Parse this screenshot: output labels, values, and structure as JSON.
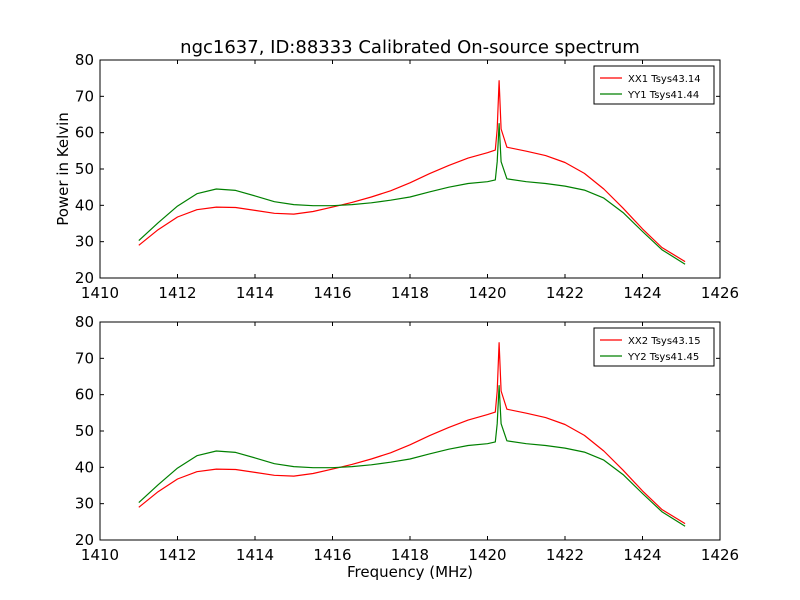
{
  "chart_data": [
    {
      "type": "line",
      "title": "ngc1637, ID:88333 Calibrated On-source spectrum",
      "xlabel": "",
      "ylabel": "Power in Kelvin",
      "xlim": [
        1410,
        1426
      ],
      "ylim": [
        20,
        80
      ],
      "xticks": [
        1410,
        1412,
        1414,
        1416,
        1418,
        1420,
        1422,
        1424,
        1426
      ],
      "yticks": [
        20,
        30,
        40,
        50,
        60,
        70,
        80
      ],
      "grid": false,
      "legend_position": "top-right",
      "series": [
        {
          "name": "XX1 Tsys43.14",
          "color": "#ff0000",
          "points": [
            [
              1411.0,
              29.0
            ],
            [
              1411.5,
              33.3
            ],
            [
              1412.0,
              36.8
            ],
            [
              1412.5,
              38.8
            ],
            [
              1413.0,
              39.5
            ],
            [
              1413.5,
              39.4
            ],
            [
              1414.0,
              38.6
            ],
            [
              1414.5,
              37.8
            ],
            [
              1415.0,
              37.6
            ],
            [
              1415.5,
              38.3
            ],
            [
              1416.0,
              39.5
            ],
            [
              1416.5,
              40.8
            ],
            [
              1417.0,
              42.3
            ],
            [
              1417.5,
              44.0
            ],
            [
              1418.0,
              46.2
            ],
            [
              1418.5,
              48.7
            ],
            [
              1419.0,
              51.0
            ],
            [
              1419.5,
              53.0
            ],
            [
              1420.0,
              54.5
            ],
            [
              1420.2,
              55.2
            ],
            [
              1420.25,
              61.0
            ],
            [
              1420.3,
              74.3
            ],
            [
              1420.35,
              61.0
            ],
            [
              1420.5,
              56.0
            ],
            [
              1421.0,
              54.9
            ],
            [
              1421.5,
              53.7
            ],
            [
              1422.0,
              51.8
            ],
            [
              1422.5,
              48.8
            ],
            [
              1423.0,
              44.5
            ],
            [
              1423.5,
              39.2
            ],
            [
              1424.0,
              33.5
            ],
            [
              1424.5,
              28.4
            ],
            [
              1425.1,
              24.5
            ]
          ]
        },
        {
          "name": "YY1 Tsys41.44",
          "color": "#008000",
          "points": [
            [
              1411.0,
              30.3
            ],
            [
              1411.5,
              35.2
            ],
            [
              1412.0,
              39.8
            ],
            [
              1412.5,
              43.2
            ],
            [
              1413.0,
              44.5
            ],
            [
              1413.5,
              44.1
            ],
            [
              1414.0,
              42.6
            ],
            [
              1414.5,
              41.0
            ],
            [
              1415.0,
              40.2
            ],
            [
              1415.5,
              39.9
            ],
            [
              1416.0,
              39.9
            ],
            [
              1416.5,
              40.2
            ],
            [
              1417.0,
              40.7
            ],
            [
              1417.5,
              41.4
            ],
            [
              1418.0,
              42.3
            ],
            [
              1418.5,
              43.7
            ],
            [
              1419.0,
              45.0
            ],
            [
              1419.5,
              46.0
            ],
            [
              1420.0,
              46.5
            ],
            [
              1420.2,
              47.0
            ],
            [
              1420.25,
              52.0
            ],
            [
              1420.3,
              62.5
            ],
            [
              1420.35,
              52.0
            ],
            [
              1420.5,
              47.3
            ],
            [
              1421.0,
              46.5
            ],
            [
              1421.5,
              46.0
            ],
            [
              1422.0,
              45.3
            ],
            [
              1422.5,
              44.2
            ],
            [
              1423.0,
              42.0
            ],
            [
              1423.5,
              38.0
            ],
            [
              1424.0,
              32.8
            ],
            [
              1424.5,
              27.8
            ],
            [
              1425.1,
              23.8
            ]
          ]
        }
      ]
    },
    {
      "type": "line",
      "title": "",
      "xlabel": "Frequency (MHz)",
      "ylabel": "",
      "xlim": [
        1410,
        1426
      ],
      "ylim": [
        20,
        80
      ],
      "xticks": [
        1410,
        1412,
        1414,
        1416,
        1418,
        1420,
        1422,
        1424,
        1426
      ],
      "yticks": [
        20,
        30,
        40,
        50,
        60,
        70,
        80
      ],
      "grid": false,
      "legend_position": "top-right",
      "series": [
        {
          "name": "XX2 Tsys43.15",
          "color": "#ff0000",
          "points": [
            [
              1411.0,
              29.0
            ],
            [
              1411.5,
              33.3
            ],
            [
              1412.0,
              36.8
            ],
            [
              1412.5,
              38.8
            ],
            [
              1413.0,
              39.5
            ],
            [
              1413.5,
              39.4
            ],
            [
              1414.0,
              38.6
            ],
            [
              1414.5,
              37.8
            ],
            [
              1415.0,
              37.6
            ],
            [
              1415.5,
              38.3
            ],
            [
              1416.0,
              39.5
            ],
            [
              1416.5,
              40.8
            ],
            [
              1417.0,
              42.3
            ],
            [
              1417.5,
              44.0
            ],
            [
              1418.0,
              46.2
            ],
            [
              1418.5,
              48.7
            ],
            [
              1419.0,
              51.0
            ],
            [
              1419.5,
              53.0
            ],
            [
              1420.0,
              54.5
            ],
            [
              1420.2,
              55.2
            ],
            [
              1420.25,
              61.0
            ],
            [
              1420.3,
              74.3
            ],
            [
              1420.35,
              61.0
            ],
            [
              1420.5,
              56.0
            ],
            [
              1421.0,
              54.9
            ],
            [
              1421.5,
              53.7
            ],
            [
              1422.0,
              51.8
            ],
            [
              1422.5,
              48.8
            ],
            [
              1423.0,
              44.5
            ],
            [
              1423.5,
              39.2
            ],
            [
              1424.0,
              33.5
            ],
            [
              1424.5,
              28.4
            ],
            [
              1425.1,
              24.5
            ]
          ]
        },
        {
          "name": "YY2 Tsys41.45",
          "color": "#008000",
          "points": [
            [
              1411.0,
              30.3
            ],
            [
              1411.5,
              35.2
            ],
            [
              1412.0,
              39.8
            ],
            [
              1412.5,
              43.2
            ],
            [
              1413.0,
              44.5
            ],
            [
              1413.5,
              44.1
            ],
            [
              1414.0,
              42.6
            ],
            [
              1414.5,
              41.0
            ],
            [
              1415.0,
              40.2
            ],
            [
              1415.5,
              39.9
            ],
            [
              1416.0,
              39.9
            ],
            [
              1416.5,
              40.2
            ],
            [
              1417.0,
              40.7
            ],
            [
              1417.5,
              41.4
            ],
            [
              1418.0,
              42.3
            ],
            [
              1418.5,
              43.7
            ],
            [
              1419.0,
              45.0
            ],
            [
              1419.5,
              46.0
            ],
            [
              1420.0,
              46.5
            ],
            [
              1420.2,
              47.0
            ],
            [
              1420.25,
              52.0
            ],
            [
              1420.3,
              62.5
            ],
            [
              1420.35,
              52.0
            ],
            [
              1420.5,
              47.3
            ],
            [
              1421.0,
              46.5
            ],
            [
              1421.5,
              46.0
            ],
            [
              1422.0,
              45.3
            ],
            [
              1422.5,
              44.2
            ],
            [
              1423.0,
              42.0
            ],
            [
              1423.5,
              38.0
            ],
            [
              1424.0,
              32.8
            ],
            [
              1424.5,
              27.8
            ],
            [
              1425.1,
              23.8
            ]
          ]
        }
      ]
    }
  ]
}
